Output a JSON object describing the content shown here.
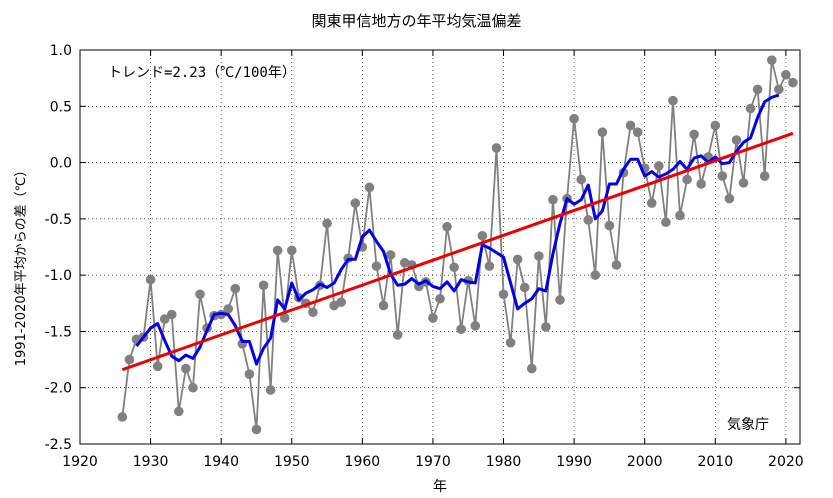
{
  "chart_data": {
    "type": "line",
    "title": "関東甲信地方の年平均気温偏差",
    "xlabel": "年",
    "ylabel": "1991-2020年平均からの差（℃）",
    "trend_label": "トレンド=2.23（℃/100年）",
    "source": "気象庁",
    "xlim": [
      1920,
      2022
    ],
    "ylim": [
      -2.5,
      1.0
    ],
    "x_ticks": [
      "1920",
      "1930",
      "1940",
      "1950",
      "1960",
      "1970",
      "1980",
      "1990",
      "2000",
      "2010",
      "2020"
    ],
    "y_ticks": [
      "1.0",
      "0.5",
      "0.0",
      "-0.5",
      "-1.0",
      "-1.5",
      "-2.0",
      "-2.5"
    ],
    "grid": true,
    "colors": {
      "annual": "#808080",
      "moving_avg": "#0000ee",
      "trend": "#ee0000"
    },
    "x": [
      1926,
      1927,
      1928,
      1929,
      1930,
      1931,
      1932,
      1933,
      1934,
      1935,
      1936,
      1937,
      1938,
      1939,
      1940,
      1941,
      1942,
      1943,
      1944,
      1945,
      1946,
      1947,
      1948,
      1949,
      1950,
      1951,
      1952,
      1953,
      1954,
      1955,
      1956,
      1957,
      1958,
      1959,
      1960,
      1961,
      1962,
      1963,
      1964,
      1965,
      1966,
      1967,
      1968,
      1969,
      1970,
      1971,
      1972,
      1973,
      1974,
      1975,
      1976,
      1977,
      1978,
      1979,
      1980,
      1981,
      1982,
      1983,
      1984,
      1985,
      1986,
      1987,
      1988,
      1989,
      1990,
      1991,
      1992,
      1993,
      1994,
      1995,
      1996,
      1997,
      1998,
      1999,
      2000,
      2001,
      2002,
      2003,
      2004,
      2005,
      2006,
      2007,
      2008,
      2009,
      2010,
      2011,
      2012,
      2013,
      2014,
      2015,
      2016,
      2017,
      2018,
      2019,
      2020,
      2021
    ],
    "series": [
      {
        "values": [
          -2.26,
          -1.75,
          -1.57,
          -1.55,
          -1.04,
          -1.81,
          -1.39,
          -1.35,
          -2.21,
          -1.83,
          -2.0,
          -1.17,
          -1.47,
          -1.36,
          -1.35,
          -1.3,
          -1.12,
          -1.61,
          -1.88,
          -2.37,
          -1.09,
          -2.02,
          -0.78,
          -1.38,
          -0.78,
          -1.2,
          -1.25,
          -1.33,
          -1.09,
          -0.54,
          -1.27,
          -1.24,
          -0.85,
          -0.36,
          -0.75,
          -0.22,
          -0.92,
          -1.27,
          -0.82,
          -1.53,
          -0.89,
          -0.91,
          -1.1,
          -1.06,
          -1.38,
          -1.21,
          -0.57,
          -0.93,
          -1.48,
          -1.05,
          -1.45,
          -0.65,
          -0.92,
          0.13,
          -1.17,
          -1.6,
          -0.86,
          -1.11,
          -1.83,
          -0.83,
          -1.46,
          -0.33,
          -1.22,
          -0.32,
          0.39,
          -0.15,
          -0.51,
          -1.0,
          0.27,
          -0.56,
          -0.91,
          -0.09,
          0.33,
          0.27,
          -0.05,
          -0.36,
          -0.03,
          -0.53,
          0.55,
          -0.47,
          -0.15,
          0.25,
          -0.19,
          0.05,
          0.33,
          -0.12,
          -0.32,
          0.2,
          -0.18,
          0.48,
          0.65,
          -0.12,
          0.91,
          0.65,
          0.78,
          0.71
        ]
      },
      {
        "x": [
          1928,
          1929,
          1930,
          1931,
          1932,
          1933,
          1934,
          1935,
          1936,
          1937,
          1938,
          1939,
          1940,
          1941,
          1942,
          1943,
          1944,
          1945,
          1946,
          1947,
          1948,
          1949,
          1950,
          1951,
          1952,
          1953,
          1954,
          1955,
          1956,
          1957,
          1958,
          1959,
          1960,
          1961,
          1962,
          1963,
          1964,
          1965,
          1966,
          1967,
          1968,
          1969,
          1970,
          1971,
          1972,
          1973,
          1974,
          1975,
          1976,
          1977,
          1978,
          1979,
          1980,
          1981,
          1982,
          1983,
          1984,
          1985,
          1986,
          1987,
          1988,
          1989,
          1990,
          1991,
          1992,
          1993,
          1994,
          1995,
          1996,
          1997,
          1998,
          1999,
          2000,
          2001,
          2002,
          2003,
          2004,
          2005,
          2006,
          2007,
          2008,
          2009,
          2010,
          2011,
          2012,
          2013,
          2014,
          2015,
          2016,
          2017,
          2018,
          2019
        ],
        "values": [
          -1.63,
          -1.55,
          -1.47,
          -1.43,
          -1.58,
          -1.72,
          -1.76,
          -1.71,
          -1.74,
          -1.64,
          -1.49,
          -1.35,
          -1.34,
          -1.35,
          -1.45,
          -1.59,
          -1.59,
          -1.79,
          -1.65,
          -1.56,
          -1.22,
          -1.3,
          -1.07,
          -1.22,
          -1.16,
          -1.13,
          -1.08,
          -1.11,
          -1.07,
          -0.95,
          -0.86,
          -0.86,
          -0.66,
          -0.6,
          -0.7,
          -0.79,
          -0.99,
          -1.09,
          -1.08,
          -1.03,
          -1.08,
          -1.05,
          -1.1,
          -1.12,
          -1.06,
          -1.14,
          -1.04,
          -1.06,
          -1.07,
          -0.73,
          -0.76,
          -0.8,
          -0.84,
          -1.07,
          -1.3,
          -1.25,
          -1.21,
          -1.12,
          -1.14,
          -0.81,
          -0.54,
          -0.32,
          -0.37,
          -0.33,
          -0.2,
          -0.5,
          -0.43,
          -0.19,
          -0.19,
          -0.06,
          0.03,
          0.03,
          -0.12,
          -0.08,
          -0.13,
          -0.1,
          -0.06,
          0.01,
          -0.06,
          0.04,
          0.06,
          0.0,
          0.05,
          -0.01,
          0.0,
          0.1,
          0.18,
          0.22,
          0.4,
          0.54,
          0.58,
          0.6
        ]
      },
      {
        "x": [
          1926,
          2021
        ],
        "values": [
          -1.84,
          0.26
        ]
      }
    ]
  }
}
